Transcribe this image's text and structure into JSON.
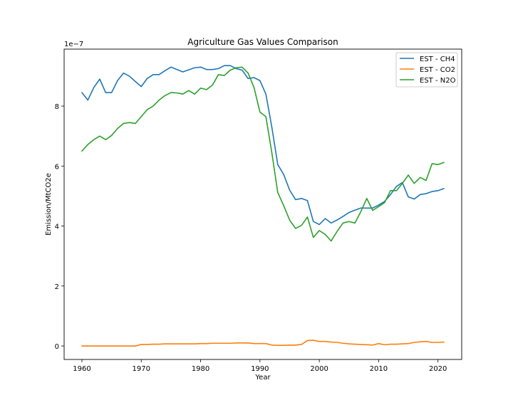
{
  "chart_data": {
    "type": "line",
    "title": "Agriculture Gas Values Comparison",
    "xlabel": "Year",
    "ylabel": "Emission/MtCO2e",
    "y_scale_label": "1e−7",
    "xlim": [
      1957.0,
      2024.0
    ],
    "ylim": [
      -0.45,
      9.9
    ],
    "y_multiplier": 1e-07,
    "xticks": [
      1960,
      1970,
      1980,
      1990,
      2000,
      2010,
      2020
    ],
    "yticks": [
      0,
      2,
      4,
      6,
      8
    ],
    "grid": false,
    "legend_position": "top-right",
    "x": [
      1960,
      1961,
      1962,
      1963,
      1964,
      1965,
      1966,
      1967,
      1968,
      1969,
      1970,
      1971,
      1972,
      1973,
      1974,
      1975,
      1976,
      1977,
      1978,
      1979,
      1980,
      1981,
      1982,
      1983,
      1984,
      1985,
      1986,
      1987,
      1988,
      1989,
      1990,
      1991,
      1992,
      1993,
      1994,
      1995,
      1996,
      1997,
      1998,
      1999,
      2000,
      2001,
      2002,
      2003,
      2004,
      2005,
      2006,
      2007,
      2008,
      2009,
      2010,
      2011,
      2012,
      2013,
      2014,
      2015,
      2016,
      2017,
      2018,
      2019,
      2020,
      2021
    ],
    "series": [
      {
        "name": "EST - CH4",
        "color": "#1f77b4",
        "values": [
          8.45,
          8.2,
          8.62,
          8.9,
          8.45,
          8.45,
          8.85,
          9.1,
          9.0,
          8.82,
          8.65,
          8.92,
          9.05,
          9.05,
          9.18,
          9.3,
          9.22,
          9.14,
          9.21,
          9.28,
          9.3,
          9.22,
          9.22,
          9.25,
          9.35,
          9.35,
          9.25,
          9.2,
          8.92,
          8.95,
          8.85,
          8.4,
          7.3,
          6.05,
          5.72,
          5.2,
          4.88,
          4.92,
          4.85,
          4.15,
          4.05,
          4.25,
          4.1,
          4.2,
          4.32,
          4.45,
          4.53,
          4.6,
          4.6,
          4.6,
          4.7,
          4.82,
          5.05,
          5.32,
          5.45,
          4.97,
          4.9,
          5.05,
          5.08,
          5.15,
          5.18,
          5.25
        ]
      },
      {
        "name": "EST - CO2",
        "color": "#ff7f0e",
        "values": [
          0.0,
          0.0,
          0.0,
          0.0,
          0.0,
          0.0,
          0.0,
          0.0,
          0.0,
          0.0,
          0.05,
          0.05,
          0.06,
          0.06,
          0.07,
          0.07,
          0.07,
          0.07,
          0.07,
          0.07,
          0.08,
          0.08,
          0.09,
          0.09,
          0.09,
          0.09,
          0.1,
          0.1,
          0.1,
          0.08,
          0.08,
          0.08,
          0.03,
          0.02,
          0.02,
          0.03,
          0.03,
          0.05,
          0.18,
          0.19,
          0.15,
          0.15,
          0.13,
          0.12,
          0.09,
          0.07,
          0.06,
          0.05,
          0.04,
          0.03,
          0.08,
          0.04,
          0.06,
          0.06,
          0.07,
          0.08,
          0.12,
          0.14,
          0.15,
          0.12,
          0.12,
          0.13
        ]
      },
      {
        "name": "EST - N2O",
        "color": "#2ca02c",
        "values": [
          6.5,
          6.72,
          6.88,
          7.0,
          6.88,
          7.02,
          7.25,
          7.42,
          7.45,
          7.42,
          7.65,
          7.88,
          8.0,
          8.2,
          8.35,
          8.45,
          8.44,
          8.4,
          8.52,
          8.4,
          8.6,
          8.55,
          8.7,
          9.05,
          9.02,
          9.2,
          9.28,
          9.3,
          9.1,
          8.62,
          7.8,
          7.65,
          6.45,
          5.12,
          4.68,
          4.2,
          3.92,
          4.02,
          4.3,
          3.62,
          3.85,
          3.72,
          3.5,
          3.82,
          4.1,
          4.15,
          4.1,
          4.48,
          4.92,
          4.52,
          4.65,
          4.78,
          5.18,
          5.18,
          5.42,
          5.7,
          5.42,
          5.62,
          5.52,
          6.08,
          6.05,
          6.12
        ]
      }
    ]
  }
}
